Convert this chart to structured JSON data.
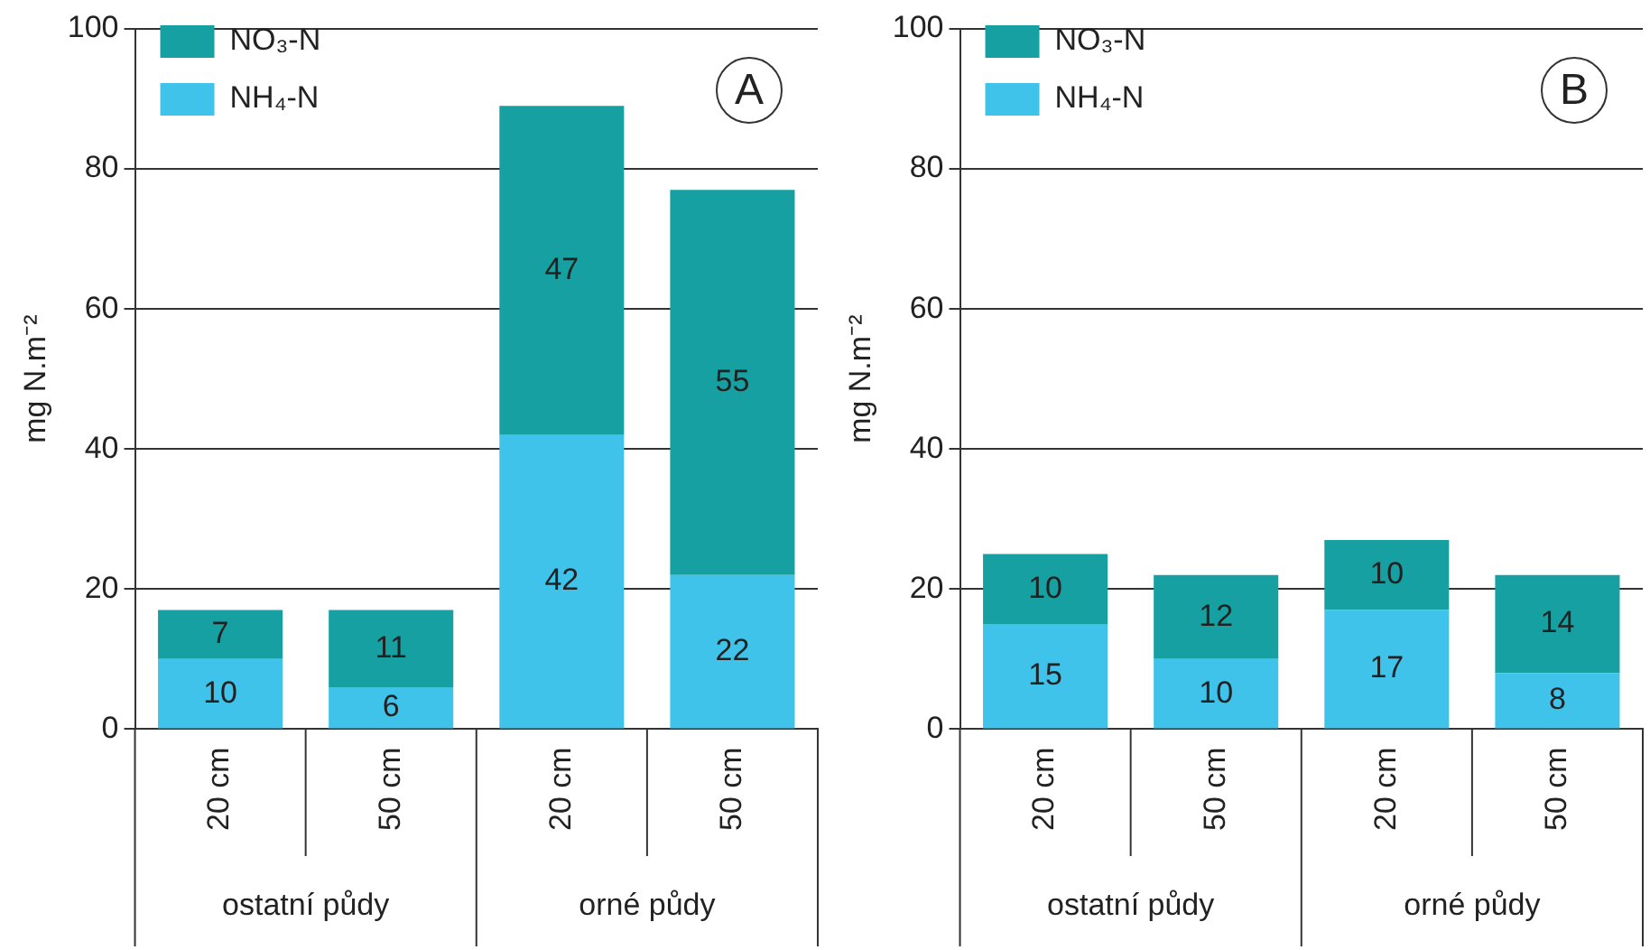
{
  "chart_data": [
    {
      "type": "bar",
      "stacked": true,
      "categories": [
        "20 cm",
        "50 cm",
        "20 cm",
        "50 cm"
      ],
      "ylabel": "mg N.m⁻²",
      "ylim": [
        0,
        100
      ],
      "yticks": [
        0,
        20,
        40,
        60,
        80,
        100
      ],
      "grid": "y",
      "legend": "top left",
      "data_labels": true,
      "series": [
        {
          "name": "NH₄-N",
          "color": "#3fc3ea",
          "values": [
            10,
            6,
            42,
            22
          ]
        },
        {
          "name": "NO₃-N",
          "color": "#17a0a2",
          "values": [
            7,
            11,
            47,
            55
          ]
        }
      ],
      "annotations": [
        "ostatní půdy",
        "orné půdy",
        "A"
      ]
    },
    {
      "type": "bar",
      "stacked": true,
      "categories": [
        "20 cm",
        "50 cm",
        "20 cm",
        "50 cm"
      ],
      "ylabel": "mg N.m⁻²",
      "ylim": [
        0,
        100
      ],
      "yticks": [
        0,
        20,
        40,
        60,
        80,
        100
      ],
      "grid": "y",
      "legend": "top left",
      "data_labels": true,
      "series": [
        {
          "name": "NH₄-N",
          "color": "#3fc3ea",
          "values": [
            15,
            10,
            17,
            8
          ]
        },
        {
          "name": "NO₃-N",
          "color": "#17a0a2",
          "values": [
            10,
            12,
            10,
            14
          ]
        }
      ],
      "annotations": [
        "ostatní půdy",
        "orné půdy",
        "B"
      ]
    }
  ]
}
